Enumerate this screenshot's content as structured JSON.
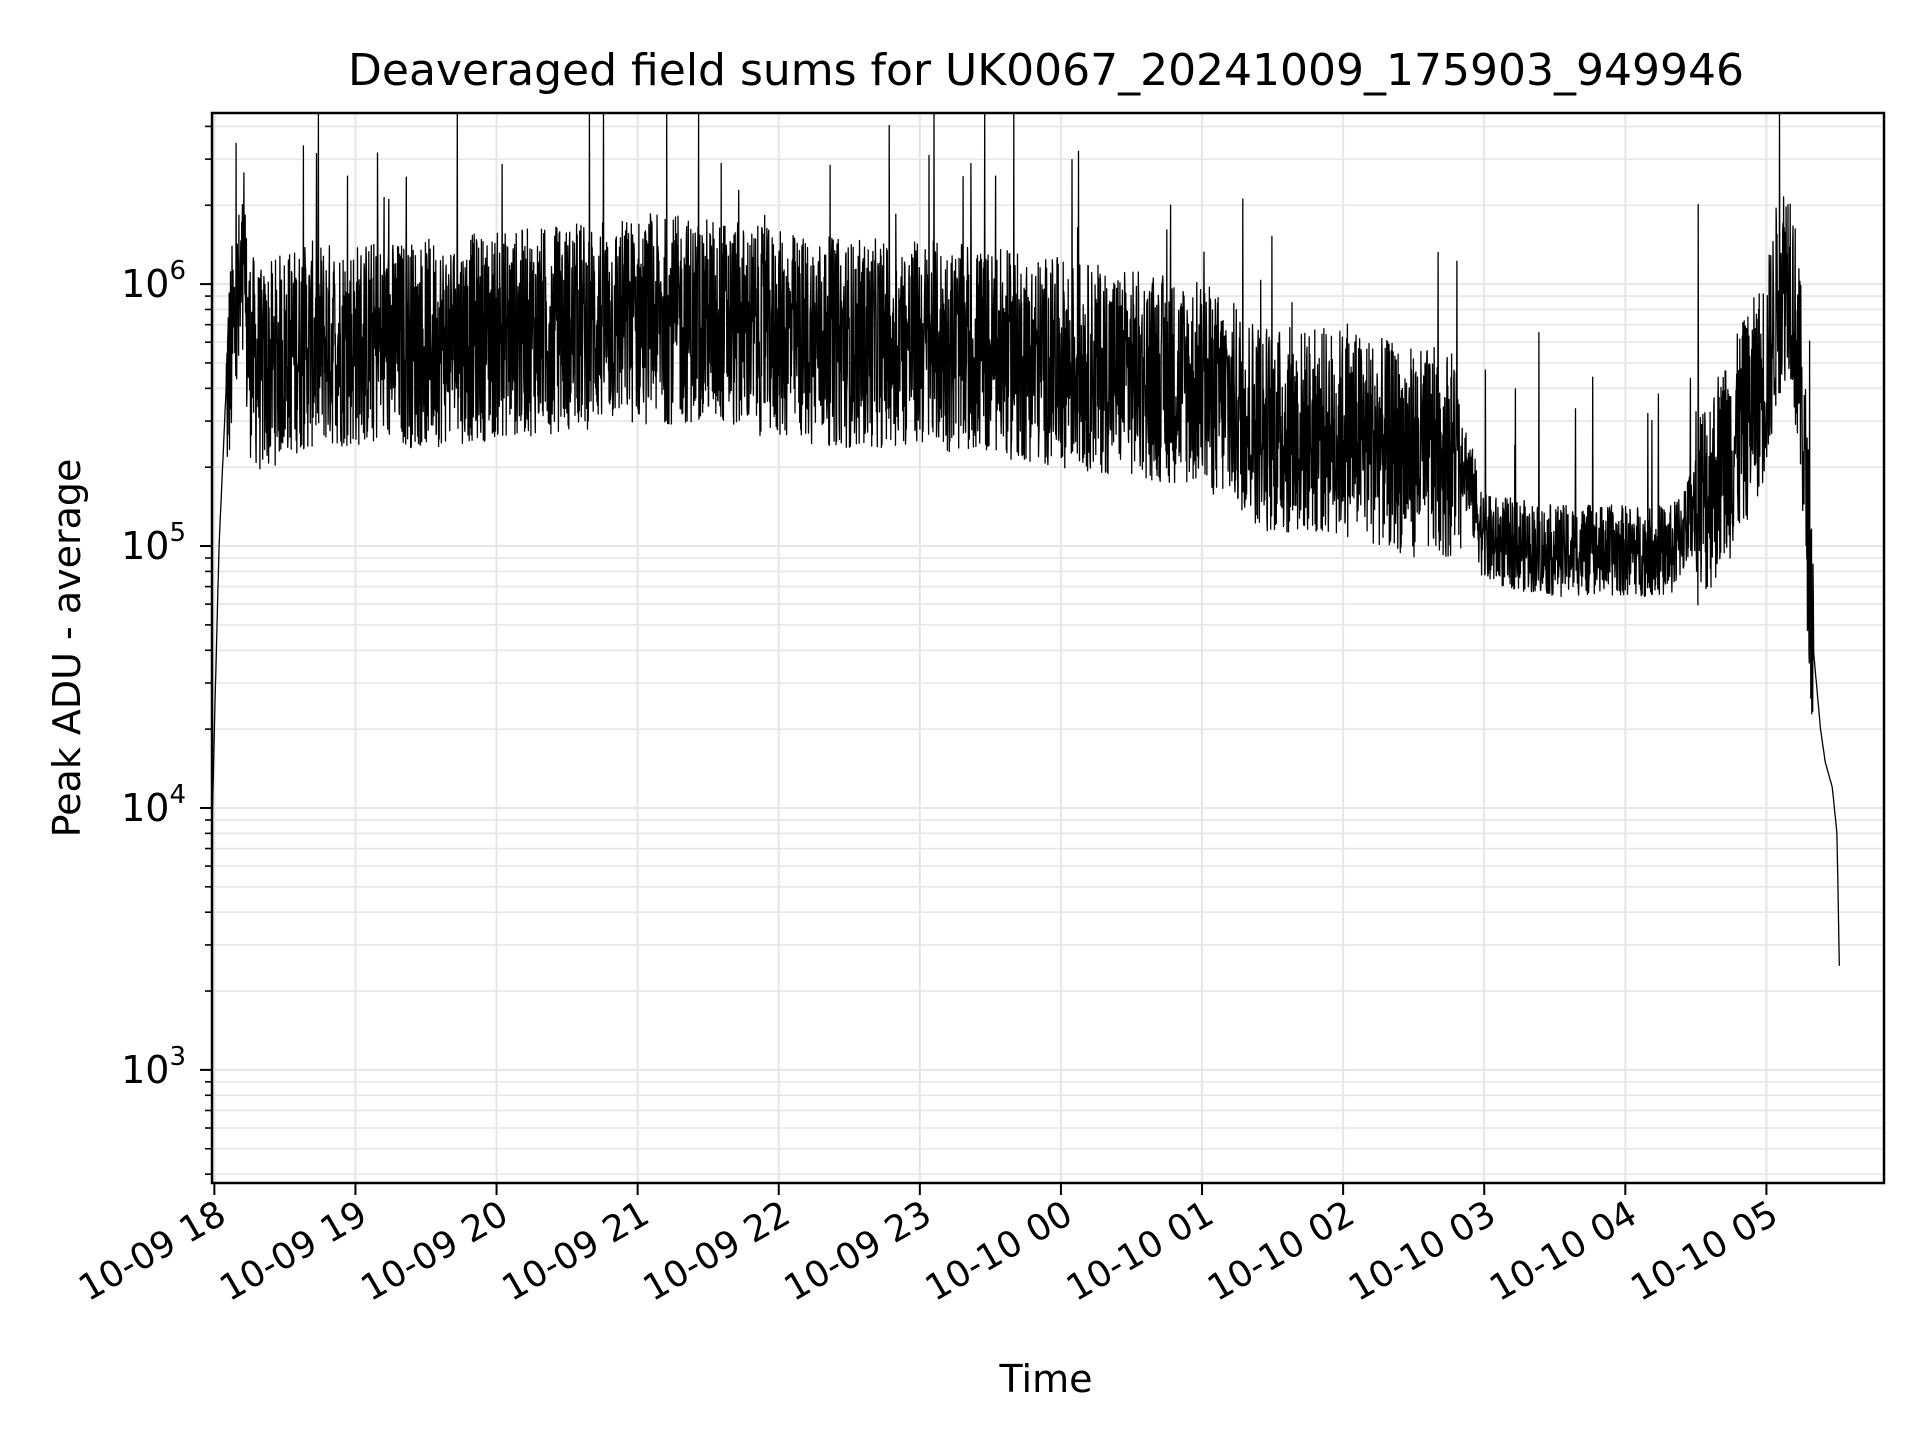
{
  "chart_data": {
    "type": "line",
    "title": "Deaveraged field sums for UK0067_20241009_175903_949946",
    "xlabel": "Time",
    "ylabel": "Peak ADU - average",
    "yscale": "log",
    "grid": true,
    "legend": "none",
    "line_color": "#000000",
    "grid_color": "#e6e6e6",
    "xlim": [
      "2024-10-09 17:59",
      "2024-10-10 05:50"
    ],
    "ylim": [
      370,
      4500000
    ],
    "x_ticks": [
      {
        "value": "2024-10-09 18:00",
        "label": "10-09 18"
      },
      {
        "value": "2024-10-09 19:00",
        "label": "10-09 19"
      },
      {
        "value": "2024-10-09 20:00",
        "label": "10-09 20"
      },
      {
        "value": "2024-10-09 21:00",
        "label": "10-09 21"
      },
      {
        "value": "2024-10-09 22:00",
        "label": "10-09 22"
      },
      {
        "value": "2024-10-09 23:00",
        "label": "10-09 23"
      },
      {
        "value": "2024-10-10 00:00",
        "label": "10-10 00"
      },
      {
        "value": "2024-10-10 01:00",
        "label": "10-10 01"
      },
      {
        "value": "2024-10-10 02:00",
        "label": "10-10 02"
      },
      {
        "value": "2024-10-10 03:00",
        "label": "10-10 03"
      },
      {
        "value": "2024-10-10 04:00",
        "label": "10-10 04"
      },
      {
        "value": "2024-10-10 05:00",
        "label": "10-10 05"
      }
    ],
    "y_ticks": [
      {
        "value": 1000,
        "base": "10",
        "exp": "3"
      },
      {
        "value": 10000,
        "base": "10",
        "exp": "4"
      },
      {
        "value": 100000,
        "base": "10",
        "exp": "5"
      },
      {
        "value": 1000000,
        "base": "10",
        "exp": "6"
      }
    ],
    "series": [
      {
        "x": [
          "2024-10-09 17:59",
          "2024-10-09 18:00",
          "2024-10-09 18:02",
          "2024-10-09 18:05",
          "2024-10-09 18:08",
          "2024-10-09 18:12",
          "2024-10-09 18:15",
          "2024-10-09 18:20",
          "2024-10-09 18:30",
          "2024-10-09 18:45",
          "2024-10-09 19:00",
          "2024-10-09 19:30",
          "2024-10-09 20:00",
          "2024-10-09 20:30",
          "2024-10-09 21:00",
          "2024-10-09 21:30",
          "2024-10-09 22:00",
          "2024-10-09 22:30",
          "2024-10-09 23:00",
          "2024-10-09 23:30",
          "2024-10-10 00:00",
          "2024-10-10 00:30",
          "2024-10-10 01:00",
          "2024-10-10 01:30",
          "2024-10-10 02:00",
          "2024-10-10 02:30",
          "2024-10-10 02:50",
          "2024-10-10 03:00",
          "2024-10-10 03:30",
          "2024-10-10 04:00",
          "2024-10-10 04:20",
          "2024-10-10 04:30",
          "2024-10-10 04:45",
          "2024-10-10 05:00",
          "2024-10-10 05:05",
          "2024-10-10 05:10",
          "2024-10-10 05:15",
          "2024-10-10 05:20",
          "2024-10-10 05:23",
          "2024-10-10 05:25",
          "2024-10-10 05:28",
          "2024-10-10 05:30",
          "2024-10-10 05:31"
        ],
        "values": [
          8000,
          20000,
          100000,
          400000,
          700000,
          1000000,
          600000,
          500000,
          600000,
          650000,
          650000,
          650000,
          700000,
          750000,
          800000,
          800000,
          700000,
          650000,
          650000,
          600000,
          550000,
          500000,
          450000,
          300000,
          300000,
          250000,
          250000,
          110000,
          100000,
          100000,
          100000,
          150000,
          250000,
          500000,
          1000000,
          1300000,
          400000,
          40000,
          20000,
          15000,
          12000,
          8000,
          2500
        ]
      }
    ]
  }
}
